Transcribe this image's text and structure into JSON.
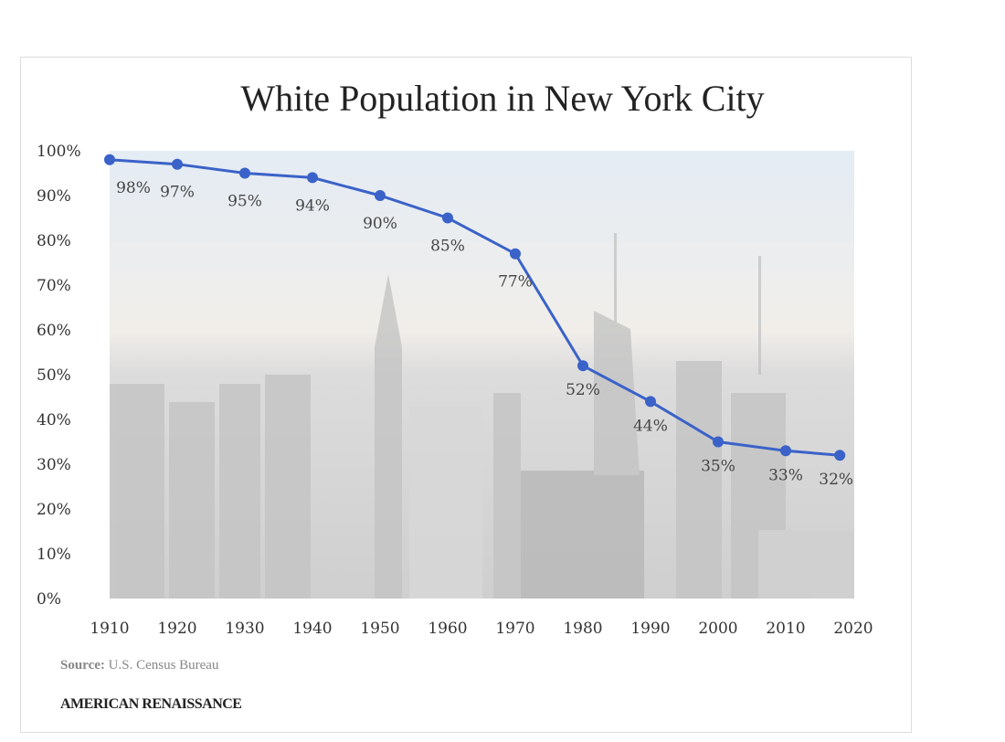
{
  "chart_data": {
    "type": "line",
    "title": "White Population in New York City",
    "xlabel": "",
    "ylabel": "",
    "x": [
      1910,
      1920,
      1930,
      1940,
      1950,
      1960,
      1970,
      1980,
      1990,
      2000,
      2010,
      2018
    ],
    "values": [
      98,
      97,
      95,
      94,
      90,
      85,
      77,
      52,
      44,
      35,
      33,
      32
    ],
    "data_labels": [
      "98%",
      "97%",
      "95%",
      "94%",
      "90%",
      "85%",
      "77%",
      "52%",
      "44%",
      "35%",
      "33%",
      "32%"
    ],
    "x_ticks": [
      "1910",
      "1920",
      "1930",
      "1940",
      "1950",
      "1960",
      "1970",
      "1980",
      "1990",
      "2000",
      "2010",
      "2020"
    ],
    "y_ticks": [
      "0%",
      "10%",
      "20%",
      "30%",
      "40%",
      "50%",
      "60%",
      "70%",
      "80%",
      "90%",
      "100%"
    ],
    "xlim": [
      1910,
      2020
    ],
    "ylim": [
      0,
      100
    ],
    "grid": false,
    "line_color": "#3a62c8"
  },
  "footer": {
    "source_label": "Source:",
    "source_text": "U.S. Census Bureau",
    "brand": "AMERICAN RENAISSANCE"
  }
}
